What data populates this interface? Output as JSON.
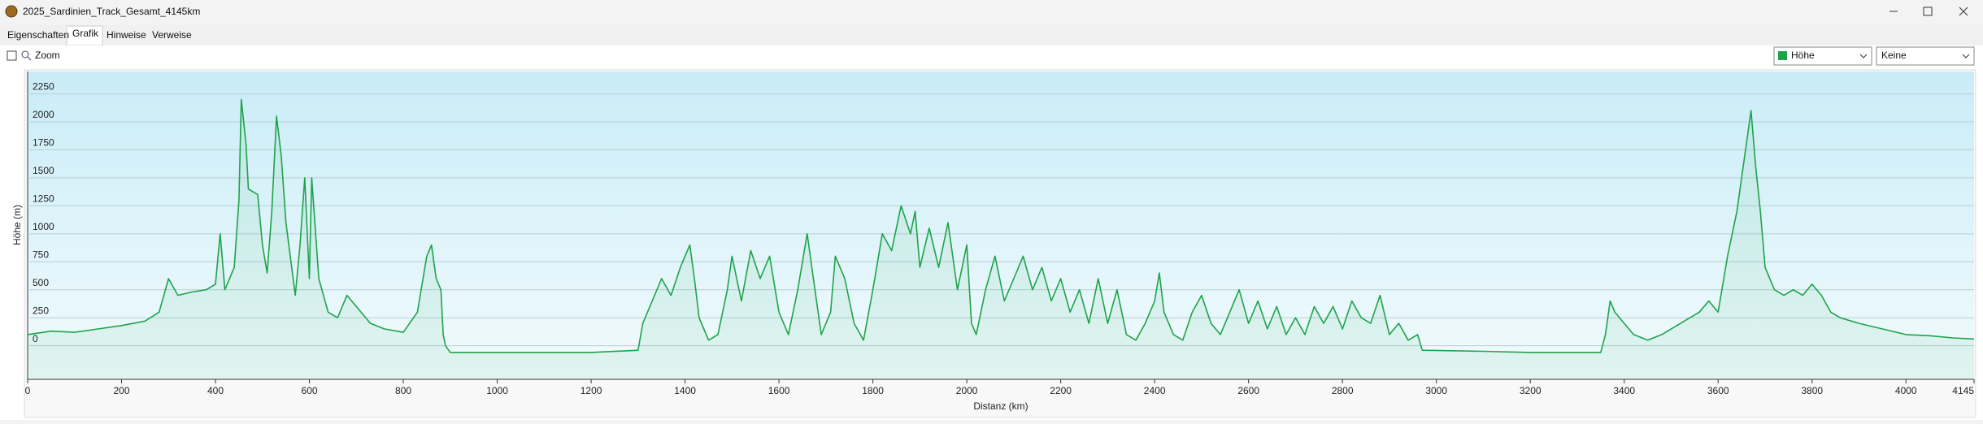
{
  "window": {
    "title": "2025_Sardinien_Track_Gesamt_4145km"
  },
  "tabs": [
    "Eigenschaften",
    "Grafik",
    "Hinweise",
    "Verweise"
  ],
  "toolbar": {
    "zoom": "Zoom",
    "profile_select": "Höhe",
    "second_select": "Keine"
  },
  "chart_data": {
    "type": "line",
    "x_label": "Distanz  (km)",
    "y_label": "Höhe (m)",
    "color": "#1fa34a",
    "xlim": [
      0,
      4145
    ],
    "ylim": [
      -300,
      2450
    ],
    "xticks": [
      0,
      200,
      400,
      600,
      800,
      1000,
      1200,
      1400,
      1600,
      1800,
      2000,
      2200,
      2400,
      2600,
      2800,
      3000,
      3200,
      3400,
      3600,
      3800,
      4000,
      4145
    ],
    "yticks": [
      0,
      250,
      500,
      750,
      1000,
      1250,
      1500,
      1750,
      2000,
      2250
    ],
    "grid": true,
    "x": [
      0,
      50,
      100,
      150,
      200,
      250,
      280,
      300,
      320,
      350,
      380,
      400,
      410,
      420,
      440,
      450,
      455,
      465,
      470,
      490,
      500,
      510,
      520,
      530,
      540,
      550,
      570,
      580,
      590,
      600,
      605,
      620,
      640,
      660,
      680,
      700,
      730,
      760,
      800,
      830,
      850,
      860,
      870,
      880,
      885,
      890,
      900,
      1000,
      1200,
      1300,
      1310,
      1330,
      1350,
      1370,
      1390,
      1410,
      1420,
      1430,
      1450,
      1470,
      1490,
      1500,
      1520,
      1540,
      1560,
      1580,
      1600,
      1620,
      1640,
      1660,
      1670,
      1680,
      1690,
      1710,
      1720,
      1740,
      1760,
      1780,
      1800,
      1820,
      1840,
      1860,
      1880,
      1890,
      1900,
      1920,
      1940,
      1960,
      1980,
      2000,
      2010,
      2020,
      2040,
      2060,
      2080,
      2100,
      2120,
      2140,
      2160,
      2180,
      2200,
      2220,
      2240,
      2260,
      2280,
      2300,
      2320,
      2340,
      2360,
      2380,
      2400,
      2410,
      2420,
      2440,
      2460,
      2480,
      2500,
      2520,
      2540,
      2560,
      2580,
      2600,
      2620,
      2640,
      2660,
      2680,
      2700,
      2720,
      2740,
      2760,
      2780,
      2800,
      2820,
      2840,
      2860,
      2880,
      2900,
      2920,
      2940,
      2960,
      2970,
      3100,
      3200,
      3350,
      3360,
      3370,
      3380,
      3400,
      3420,
      3450,
      3480,
      3520,
      3560,
      3580,
      3600,
      3620,
      3640,
      3660,
      3670,
      3680,
      3690,
      3700,
      3720,
      3740,
      3760,
      3780,
      3800,
      3820,
      3840,
      3860,
      3900,
      3950,
      4000,
      4050,
      4100,
      4145
    ],
    "values": [
      100,
      130,
      120,
      150,
      180,
      220,
      300,
      600,
      450,
      480,
      500,
      550,
      1000,
      500,
      700,
      1300,
      2200,
      1800,
      1400,
      1350,
      900,
      650,
      1200,
      2050,
      1700,
      1100,
      450,
      900,
      1500,
      600,
      1500,
      600,
      300,
      250,
      450,
      350,
      200,
      150,
      120,
      300,
      800,
      900,
      600,
      500,
      100,
      0,
      -60,
      -60,
      -60,
      -40,
      200,
      400,
      600,
      450,
      700,
      900,
      600,
      250,
      50,
      100,
      500,
      800,
      400,
      850,
      600,
      800,
      300,
      100,
      500,
      1000,
      700,
      400,
      100,
      300,
      800,
      600,
      200,
      50,
      500,
      1000,
      850,
      1250,
      1000,
      1200,
      700,
      1050,
      700,
      1100,
      500,
      900,
      200,
      100,
      500,
      800,
      400,
      600,
      800,
      500,
      700,
      400,
      600,
      300,
      500,
      200,
      600,
      200,
      500,
      100,
      50,
      200,
      400,
      650,
      300,
      100,
      50,
      300,
      450,
      200,
      100,
      300,
      500,
      200,
      400,
      150,
      350,
      100,
      250,
      100,
      350,
      200,
      350,
      150,
      400,
      250,
      200,
      450,
      100,
      200,
      50,
      100,
      -40,
      -50,
      -60,
      -60,
      100,
      400,
      300,
      200,
      100,
      50,
      100,
      200,
      300,
      400,
      300,
      800,
      1200,
      1800,
      2100,
      1600,
      1200,
      700,
      500,
      450,
      500,
      450,
      550,
      450,
      300,
      250,
      200,
      150,
      100,
      90,
      70,
      60
    ]
  }
}
